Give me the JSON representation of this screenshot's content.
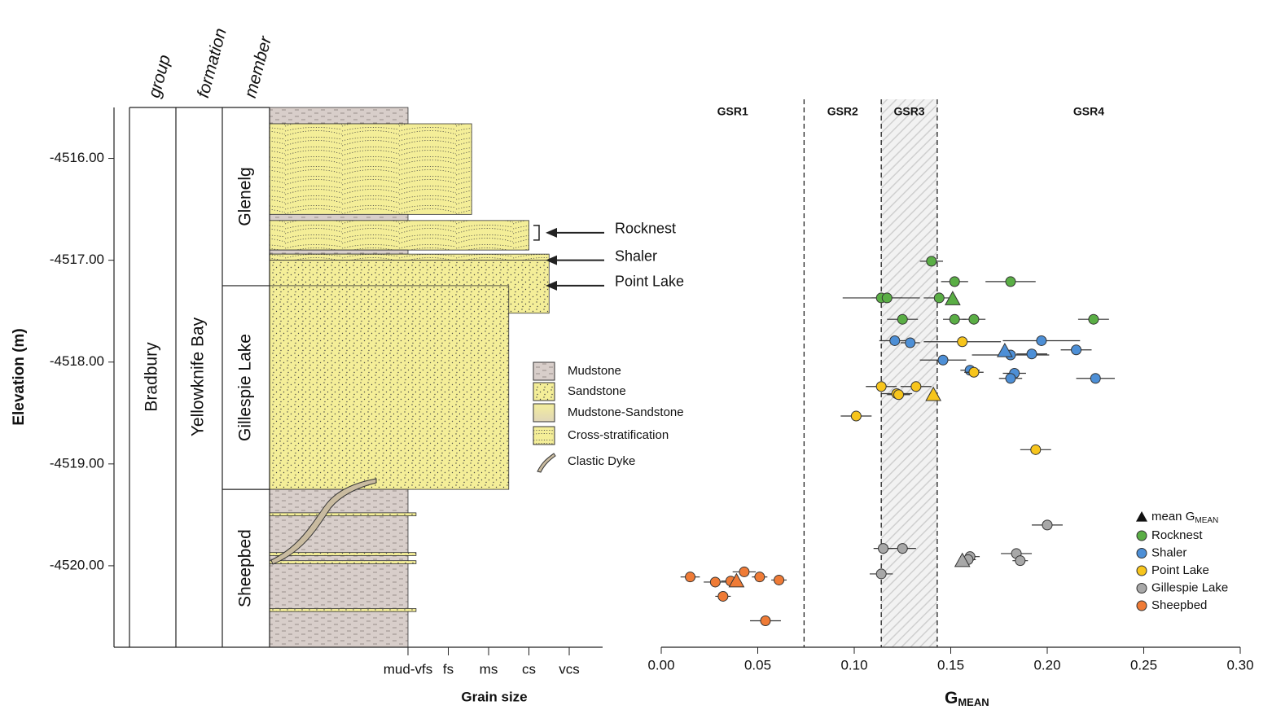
{
  "chart_data": [
    {
      "type": "strat_column",
      "ylabel": "Elevation (m)",
      "ylim": [
        -4520.8,
        -4515.5
      ],
      "yticks": [
        {
          "value": -4516,
          "label": "-4516.00"
        },
        {
          "value": -4517,
          "label": "-4517.00"
        },
        {
          "value": -4518,
          "label": "-4518.00"
        },
        {
          "value": -4519,
          "label": "-4519.00"
        },
        {
          "value": -4520,
          "label": "-4520.00"
        }
      ],
      "xlabel": "Grain size",
      "categories": [
        "mud-vfs",
        "fs",
        "ms",
        "cs",
        "vcs"
      ],
      "column_headers": [
        "group",
        "formation",
        "member"
      ],
      "group": "Bradbury",
      "formation": "Yellowknife Bay",
      "members": [
        {
          "name": "Glenelg",
          "top": -4515.5,
          "bottom": -4517.25
        },
        {
          "name": "Gillespie Lake",
          "top": -4517.25,
          "bottom": -4519.25
        },
        {
          "name": "Sheepbed",
          "top": -4519.25,
          "bottom": -4520.8
        }
      ],
      "legend": [
        "Mudstone",
        "Sandstone",
        "Mudstone-Sandstone",
        "Cross-stratification",
        "Clastic Dyke"
      ],
      "beds": [
        {
          "litho": 0,
          "top": -4515.5,
          "bottom": -4515.66,
          "grain": 0
        },
        {
          "litho": 3,
          "top": -4515.66,
          "bottom": -4516.55,
          "grain": 1.58
        },
        {
          "litho": 0,
          "top": -4516.55,
          "bottom": -4516.61,
          "grain": 0
        },
        {
          "litho": 3,
          "top": -4516.61,
          "bottom": -4516.9,
          "grain": 3
        },
        {
          "litho": 0,
          "top": -4516.9,
          "bottom": -4516.94,
          "grain": 0
        },
        {
          "litho": 3,
          "top": -4516.94,
          "bottom": -4517.0,
          "grain": 3.5
        },
        {
          "litho": 1,
          "top": -4517.0,
          "bottom": -4517.52,
          "grain": 3.5
        },
        {
          "litho": 1,
          "top": -4517.25,
          "bottom": -4519.25,
          "grain": 2.5
        },
        {
          "litho": 0,
          "top": -4519.25,
          "bottom": -4520.8,
          "grain": 0
        },
        {
          "litho": 1,
          "top": -4519.48,
          "bottom": -4519.51,
          "grain": 0.2
        },
        {
          "litho": 1,
          "top": -4519.87,
          "bottom": -4519.9,
          "grain": 0.2
        },
        {
          "litho": 1,
          "top": -4519.95,
          "bottom": -4519.98,
          "grain": 0.2
        },
        {
          "litho": 1,
          "top": -4520.42,
          "bottom": -4520.45,
          "grain": 0.2
        }
      ],
      "annotations": [
        {
          "text": "Rocknest",
          "y": -4516.73
        },
        {
          "text": "Shaler",
          "y": -4517.0
        },
        {
          "text": "Point Lake",
          "y": -4517.25
        }
      ]
    },
    {
      "type": "scatter",
      "xlabel": {
        "text": "G",
        "sub": "MEAN"
      },
      "xlim": [
        0,
        0.3
      ],
      "xticks": [
        {
          "value": 0,
          "label": "0.00"
        },
        {
          "value": 0.05,
          "label": "0.05"
        },
        {
          "value": 0.1,
          "label": "0.10"
        },
        {
          "value": 0.15,
          "label": "0.15"
        },
        {
          "value": 0.2,
          "label": "0.20"
        },
        {
          "value": 0.25,
          "label": "0.25"
        },
        {
          "value": 0.3,
          "label": "0.30"
        }
      ],
      "ylim": [
        -4520.8,
        -4515.5
      ],
      "zones": [
        "GSR1",
        "GSR2",
        "GSR3",
        "GSR4"
      ],
      "zone_bounds": [
        0.074,
        0.114,
        0.143
      ],
      "shaded_zone": 2,
      "mean_legend": {
        "text": "mean G",
        "sub": "MEAN"
      },
      "series": [
        {
          "name": "Rocknest",
          "color": "#5aae45",
          "x": [
            0.14,
            0.152,
            0.181,
            0.114,
            0.117,
            0.144,
            0.125,
            0.152,
            0.162,
            0.224
          ],
          "values": [
            -4517.01,
            -4517.21,
            -4517.21,
            -4517.37,
            -4517.37,
            -4517.37,
            -4517.58,
            -4517.58,
            -4517.58,
            -4517.58
          ],
          "xerr": [
            0.006,
            0.007,
            0.013,
            0.02,
            0.008,
            0.008,
            0.008,
            0.006,
            0.006,
            0.008
          ],
          "mean": {
            "x": 0.151,
            "y": -4517.38
          }
        },
        {
          "name": "Shaler",
          "color": "#4d8fd6",
          "x": [
            0.121,
            0.129,
            0.197,
            0.215,
            0.181,
            0.192,
            0.146,
            0.16,
            0.183,
            0.181,
            0.225
          ],
          "values": [
            -4517.79,
            -4517.81,
            -4517.79,
            -4517.88,
            -4517.93,
            -4517.92,
            -4517.98,
            -4518.08,
            -4518.11,
            -4518.16,
            -4518.16
          ],
          "xerr": [
            0.008,
            0.005,
            0.02,
            0.008,
            0.02,
            0.008,
            0.012,
            0.005,
            0.006,
            0.006,
            0.01
          ],
          "mean": {
            "x": 0.178,
            "y": -4517.89
          }
        },
        {
          "name": "Point Lake",
          "color": "#f7c51c",
          "x": [
            0.156,
            0.114,
            0.132,
            0.122,
            0.123,
            0.162,
            0.101,
            0.194
          ],
          "values": [
            -4517.8,
            -4518.24,
            -4518.24,
            -4518.31,
            -4518.32,
            -4518.1,
            -4518.53,
            -4518.86
          ],
          "xerr": [
            0.02,
            0.008,
            0.008,
            0.008,
            0.006,
            0.005,
            0.008,
            0.008
          ],
          "mean": {
            "x": 0.141,
            "y": -4518.32
          }
        },
        {
          "name": "Gillespie Lake",
          "color": "#a8a8a8",
          "x": [
            0.2,
            0.115,
            0.125,
            0.16,
            0.159,
            0.184,
            0.186,
            0.114
          ],
          "values": [
            -4519.6,
            -4519.83,
            -4519.83,
            -4519.91,
            -4519.94,
            -4519.88,
            -4519.95,
            -4520.08
          ],
          "xerr": [
            0.008,
            0.005,
            0.007,
            0.005,
            0.004,
            0.008,
            0.004,
            0.006
          ],
          "mean": {
            "x": 0.156,
            "y": -4519.95
          }
        },
        {
          "name": "Sheepbed",
          "color": "#ef7b36",
          "x": [
            0.015,
            0.028,
            0.043,
            0.036,
            0.051,
            0.061,
            0.032,
            0.054
          ],
          "values": [
            -4520.11,
            -4520.16,
            -4520.06,
            -4520.15,
            -4520.11,
            -4520.14,
            -4520.3,
            -4520.54
          ],
          "xerr": [
            0.005,
            0.006,
            0.006,
            0.005,
            0.004,
            0.004,
            0.004,
            0.008
          ],
          "mean": {
            "x": 0.039,
            "y": -4520.15
          }
        }
      ]
    }
  ]
}
